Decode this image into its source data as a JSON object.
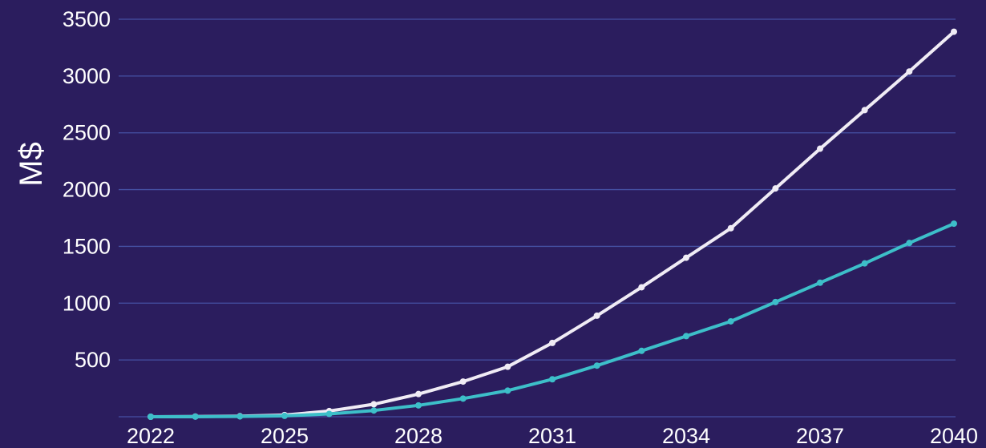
{
  "colors": {
    "background": "#2b1d5e",
    "grid": "#4a5ab0",
    "tick_text": "#ffffff"
  },
  "chart_data": {
    "type": "line",
    "title": "",
    "xlabel": "",
    "ylabel": "M$",
    "x": [
      2022,
      2023,
      2024,
      2025,
      2026,
      2027,
      2028,
      2029,
      2030,
      2031,
      2032,
      2033,
      2034,
      2035,
      2036,
      2037,
      2038,
      2039,
      2040
    ],
    "xticks": [
      "2022",
      "2025",
      "2028",
      "2031",
      "2034",
      "2037",
      "2040"
    ],
    "yticks": [
      "500",
      "1000",
      "1500",
      "2000",
      "2500",
      "3000",
      "3500"
    ],
    "ylim": [
      0,
      3500
    ],
    "xlim": [
      2022,
      2040
    ],
    "grid": true,
    "series": [
      {
        "color": "#f0ecf5",
        "values": [
          0,
          2,
          5,
          15,
          50,
          110,
          200,
          310,
          440,
          650,
          890,
          1140,
          1400,
          1660,
          2010,
          2360,
          2700,
          3040,
          3390
        ]
      },
      {
        "color": "#3dbfc9",
        "values": [
          0,
          1,
          3,
          8,
          25,
          55,
          100,
          160,
          230,
          330,
          450,
          580,
          710,
          840,
          1010,
          1180,
          1350,
          1530,
          1700
        ]
      }
    ]
  }
}
